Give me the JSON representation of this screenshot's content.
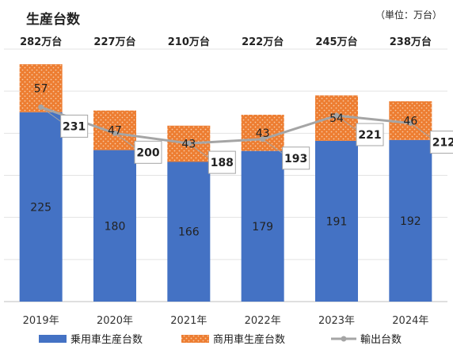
{
  "chart_data": {
    "type": "bar",
    "title": "生産台数",
    "unit": "（単位：万台）",
    "categories": [
      "2019年",
      "2020年",
      "2021年",
      "2022年",
      "2023年",
      "2024年"
    ],
    "totals": [
      "282万台",
      "227万台",
      "210万台",
      "222万台",
      "245万台",
      "238万台"
    ],
    "series": [
      {
        "name": "乗用車生産台数",
        "type": "bar",
        "stack": true,
        "color": "#4472c4",
        "values": [
          225,
          180,
          166,
          179,
          191,
          192
        ]
      },
      {
        "name": "商用車生産台数",
        "type": "bar",
        "stack": true,
        "color": "#ed7d31",
        "pattern": "dotted",
        "values": [
          57,
          47,
          43,
          43,
          54,
          46
        ]
      },
      {
        "name": "輸出台数",
        "type": "line",
        "color": "#a5a5a5",
        "values": [
          231,
          200,
          188,
          193,
          221,
          212
        ]
      }
    ],
    "ylim": [
      0,
      300
    ],
    "grid": true,
    "legend_position": "bottom"
  }
}
